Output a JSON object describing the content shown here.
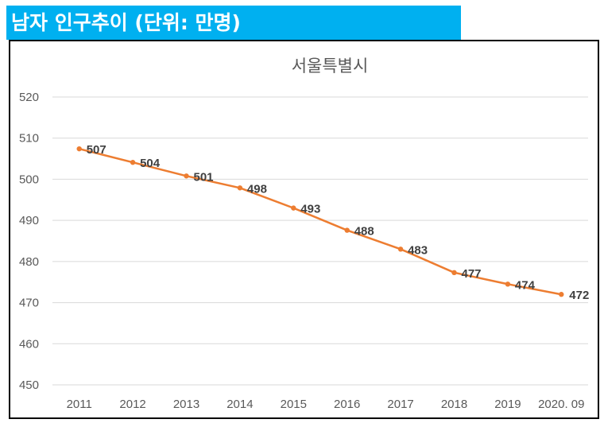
{
  "header": {
    "title": "남자 인구추이 (단위: 만명)"
  },
  "colors": {
    "header_bg": "#00b0f0",
    "line": "#ed7d31",
    "grid": "#d9d9d9"
  },
  "chart_data": {
    "type": "line",
    "title": "서울특별시",
    "xlabel": "",
    "ylabel": "",
    "categories": [
      "2011",
      "2012",
      "2013",
      "2014",
      "2015",
      "2016",
      "2017",
      "2018",
      "2019",
      "2020. 09"
    ],
    "series": [
      {
        "values": [
          507.4,
          504.1,
          500.8,
          497.9,
          493.0,
          487.6,
          483.0,
          477.3,
          474.5,
          472.0
        ],
        "labels": [
          "507",
          "504",
          "501",
          "498",
          "493",
          "488",
          "483",
          "477",
          "474",
          "472"
        ]
      }
    ],
    "ylim": [
      450,
      520
    ],
    "yticks": [
      "450",
      "460",
      "470",
      "480",
      "490",
      "500",
      "510",
      "520"
    ],
    "grid": true,
    "legend": "none"
  }
}
